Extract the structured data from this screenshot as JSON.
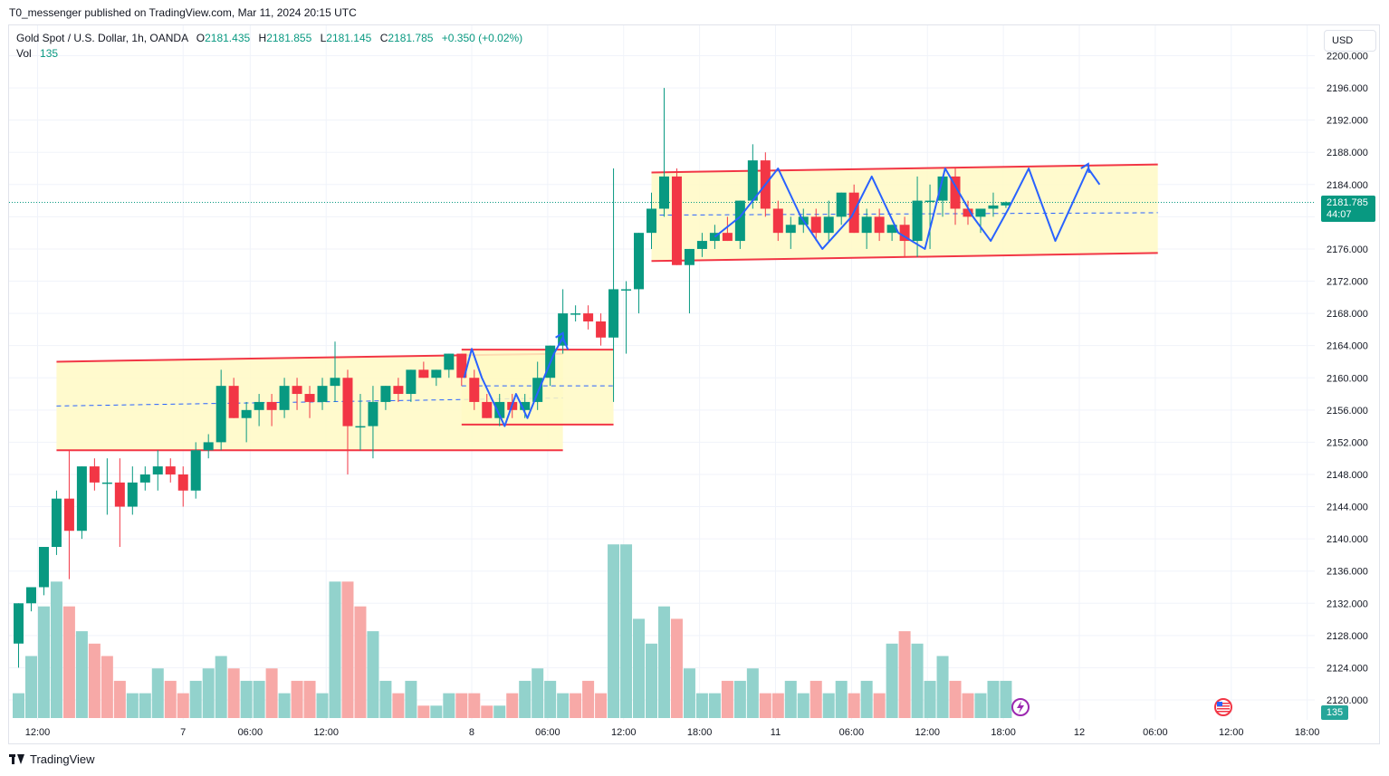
{
  "header": {
    "caption": "T0_messenger published on TradingView.com, Mar 11, 2024 20:15 UTC"
  },
  "legend": {
    "symbol": "Gold Spot / U.S. Dollar, 1h, OANDA",
    "o_label": "O",
    "o": "2181.435",
    "h_label": "H",
    "h": "2181.855",
    "l_label": "L",
    "l": "2181.145",
    "c_label": "C",
    "c": "2181.785",
    "change": "+0.350 (+0.02%)",
    "vol_label": "Vol",
    "vol": "135"
  },
  "toolbar": {
    "currency": "USD"
  },
  "price_tag": {
    "price": "2181.785",
    "countdown": "44:07"
  },
  "volume_tag": "135",
  "footer": {
    "brand": "TradingView"
  },
  "colors": {
    "up": "#089981",
    "down": "#f23645",
    "up_vol": "#92d2cc",
    "down_vol": "#f7a9a7",
    "channel_fill": "#fff9c4",
    "channel_line": "#f23645",
    "path_line": "#2962ff"
  },
  "icons": [
    "tradingview-logo",
    "lightning-event-icon",
    "us-flag-event-icon"
  ],
  "chart_data": {
    "type": "candlestick",
    "title": "Gold Spot / U.S. Dollar, 1h, OANDA",
    "ylim": [
      2118,
      2202
    ],
    "y_ticks": [
      "2120.000",
      "2124.000",
      "2128.000",
      "2132.000",
      "2136.000",
      "2140.000",
      "2144.000",
      "2148.000",
      "2152.000",
      "2156.000",
      "2160.000",
      "2164.000",
      "2168.000",
      "2172.000",
      "2176.000",
      "2180.000",
      "2184.000",
      "2188.000",
      "2192.000",
      "2196.000",
      "2200.000"
    ],
    "x_ticks": [
      "12:00",
      "7",
      "06:00",
      "12:00",
      "8",
      "06:00",
      "12:00",
      "18:00",
      "11",
      "06:00",
      "12:00",
      "18:00",
      "12",
      "06:00",
      "12:00",
      "18:00"
    ],
    "last_price": 2181.785,
    "candles": [
      [
        2127,
        2132,
        2124,
        2132
      ],
      [
        2132,
        2134,
        2131,
        2134
      ],
      [
        2134,
        2139,
        2133,
        2139
      ],
      [
        2139,
        2146,
        2138,
        2145
      ],
      [
        2145,
        2151,
        2135,
        2141
      ],
      [
        2141,
        2149,
        2140,
        2149
      ],
      [
        2149,
        2150,
        2146,
        2147
      ],
      [
        2147,
        2150,
        2143,
        2147
      ],
      [
        2147,
        2150,
        2139,
        2144
      ],
      [
        2144,
        2149,
        2143,
        2147
      ],
      [
        2147,
        2149,
        2146,
        2148
      ],
      [
        2148,
        2151,
        2146,
        2149
      ],
      [
        2149,
        2150,
        2147,
        2148
      ],
      [
        2148,
        2149,
        2144,
        2146
      ],
      [
        2146,
        2152,
        2145,
        2151
      ],
      [
        2151,
        2153,
        2150,
        2152
      ],
      [
        2152,
        2161,
        2151,
        2159
      ],
      [
        2159,
        2160,
        2155,
        2155
      ],
      [
        2155,
        2157,
        2152,
        2156
      ],
      [
        2156,
        2158,
        2154,
        2157
      ],
      [
        2157,
        2158,
        2154,
        2156
      ],
      [
        2156,
        2160,
        2155,
        2159
      ],
      [
        2159,
        2160,
        2156,
        2158
      ],
      [
        2158,
        2159,
        2155,
        2157
      ],
      [
        2157,
        2160,
        2156,
        2159
      ],
      [
        2159,
        2164.5,
        2157,
        2160
      ],
      [
        2160,
        2161,
        2148,
        2154
      ],
      [
        2154,
        2158,
        2151,
        2154
      ],
      [
        2154,
        2159,
        2150,
        2157
      ],
      [
        2157,
        2159,
        2156,
        2159
      ],
      [
        2159,
        2160,
        2157,
        2158
      ],
      [
        2158,
        2161,
        2157,
        2161
      ],
      [
        2161,
        2162,
        2160,
        2160
      ],
      [
        2160,
        2161,
        2159,
        2161
      ],
      [
        2161,
        2163,
        2160,
        2163
      ],
      [
        2163,
        2163,
        2159,
        2160
      ],
      [
        2160,
        2161,
        2156,
        2157
      ],
      [
        2157,
        2158,
        2155,
        2155
      ],
      [
        2155,
        2158,
        2154,
        2157
      ],
      [
        2157,
        2158,
        2155,
        2156
      ],
      [
        2156,
        2158,
        2155,
        2157
      ],
      [
        2157,
        2162,
        2156,
        2160
      ],
      [
        2160,
        2164,
        2159,
        2164
      ],
      [
        2164,
        2171,
        2163,
        2168
      ],
      [
        2168,
        2169,
        2167,
        2168
      ],
      [
        2168,
        2169,
        2166,
        2167
      ],
      [
        2167,
        2168,
        2164,
        2165
      ],
      [
        2165,
        2186,
        2157,
        2171
      ],
      [
        2171,
        2172,
        2163,
        2171
      ],
      [
        2171,
        2178,
        2168,
        2178
      ],
      [
        2178,
        2183,
        2176,
        2181
      ],
      [
        2181,
        2196,
        2180,
        2185
      ],
      [
        2185,
        2186,
        2174,
        2174
      ],
      [
        2174,
        2176,
        2168,
        2176
      ],
      [
        2176,
        2178,
        2175,
        2177
      ],
      [
        2177,
        2179,
        2176,
        2178
      ],
      [
        2178,
        2180,
        2177,
        2177
      ],
      [
        2177,
        2182,
        2176,
        2182
      ],
      [
        2182,
        2189,
        2181,
        2187
      ],
      [
        2187,
        2188,
        2180,
        2181
      ],
      [
        2181,
        2182,
        2177,
        2178
      ],
      [
        2178,
        2180,
        2176,
        2179
      ],
      [
        2179,
        2181,
        2178,
        2180
      ],
      [
        2180,
        2181,
        2177,
        2178
      ],
      [
        2178,
        2182,
        2177,
        2180
      ],
      [
        2180,
        2183,
        2179,
        2183
      ],
      [
        2183,
        2184,
        2178,
        2178
      ],
      [
        2178,
        2181,
        2176,
        2180
      ],
      [
        2180,
        2181,
        2177,
        2178
      ],
      [
        2178,
        2179,
        2177,
        2179
      ],
      [
        2179,
        2180,
        2175,
        2177
      ],
      [
        2177,
        2185,
        2175,
        2182
      ],
      [
        2182,
        2184,
        2176,
        2182
      ],
      [
        2182,
        2185,
        2180,
        2185
      ],
      [
        2185,
        2186,
        2179,
        2181
      ],
      [
        2181,
        2182,
        2179,
        2180
      ],
      [
        2180,
        2181,
        2178,
        2181
      ],
      [
        2181,
        2183,
        2180,
        2181.4
      ],
      [
        2181.4,
        2181.9,
        2181.1,
        2181.8
      ]
    ],
    "volumes": [
      2,
      5,
      9,
      11,
      9,
      7,
      6,
      5,
      3,
      2,
      2,
      4,
      3,
      2,
      3,
      4,
      5,
      4,
      3,
      3,
      4,
      2,
      3,
      3,
      2,
      11,
      11,
      9,
      7,
      3,
      2,
      3,
      1,
      1,
      2,
      2,
      2,
      1,
      1,
      2,
      3,
      4,
      3,
      2,
      2,
      3,
      2,
      14,
      14,
      8,
      6,
      9,
      8,
      4,
      2,
      2,
      3,
      3,
      4,
      2,
      2,
      3,
      2,
      3,
      2,
      3,
      2,
      3,
      2,
      6,
      7,
      6,
      3,
      5,
      3,
      2,
      2,
      3,
      3
    ],
    "volume_directions": [
      1,
      1,
      1,
      1,
      0,
      1,
      0,
      0,
      0,
      1,
      1,
      1,
      0,
      0,
      1,
      1,
      1,
      0,
      1,
      1,
      0,
      1,
      0,
      0,
      1,
      1,
      0,
      0,
      1,
      1,
      0,
      1,
      0,
      1,
      1,
      0,
      0,
      0,
      1,
      0,
      1,
      1,
      1,
      1,
      0,
      0,
      0,
      1,
      1,
      1,
      1,
      1,
      0,
      1,
      1,
      1,
      0,
      1,
      1,
      0,
      0,
      1,
      1,
      0,
      1,
      1,
      0,
      1,
      0,
      1,
      0,
      1,
      1,
      1,
      0,
      0,
      1,
      1,
      1
    ],
    "channels": [
      {
        "x0": 3,
        "x1": 43,
        "top": [
          2162,
          2163
        ],
        "bottom": [
          2151,
          2151
        ],
        "mid": [
          2156.5,
          2157.5
        ]
      },
      {
        "x0": 35,
        "x1": 47,
        "top": [
          2163.5,
          2163.5
        ],
        "bottom": [
          2154.2,
          2154.2
        ],
        "mid": [
          2159,
          2159
        ]
      },
      {
        "x0": 50,
        "x1": 90,
        "top": [
          2185.5,
          2186.5
        ],
        "bottom": [
          2174.5,
          2175.5
        ],
        "mid": [
          2180.2,
          2180.5
        ]
      }
    ],
    "projection_path": [
      [
        35.2,
        2160
      ],
      [
        35.8,
        2163.6
      ],
      [
        36.6,
        2160
      ],
      [
        37.5,
        2157
      ],
      [
        38.4,
        2154
      ],
      [
        39.3,
        2158
      ],
      [
        40.2,
        2155
      ],
      [
        41.1,
        2158.5
      ],
      [
        42.3,
        2163
      ],
      [
        43,
        2165
      ],
      [
        43.4,
        2163.5
      ],
      [
        55,
        2177.5
      ],
      [
        57,
        2180
      ],
      [
        60,
        2186
      ],
      [
        61.8,
        2180
      ],
      [
        63.5,
        2176
      ],
      [
        65.8,
        2180
      ],
      [
        67.4,
        2185
      ],
      [
        69.5,
        2178
      ],
      [
        71.6,
        2176
      ],
      [
        73.2,
        2186
      ],
      [
        75.4,
        2180
      ],
      [
        76.8,
        2177
      ],
      [
        78.2,
        2181
      ],
      [
        79.8,
        2186
      ],
      [
        81.9,
        2177
      ],
      [
        84.5,
        2186
      ],
      [
        85.4,
        2184
      ]
    ]
  }
}
